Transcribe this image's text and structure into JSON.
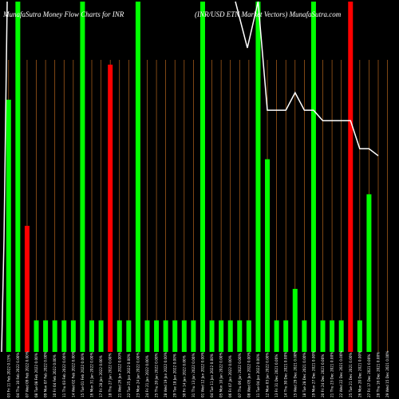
{
  "chart_data": {
    "type": "bar",
    "title_left": "MunafaSutra  Money Flow  Charts for INR",
    "title_right": "(INR/USD ETN  Market Vectors) MunafaSutra.com",
    "colors": {
      "background": "#000000",
      "up": "#00ff00",
      "down": "#ff0000",
      "grid": "#b5651d",
      "line": "#ffffff"
    },
    "ylim": [
      0,
      100
    ],
    "tick_labels": [
      "03 Fri 11 Feb 2022 0.15%",
      "04 Thu 10 Feb 2022 0.00%",
      "07 Wed 09 Feb 2022 0.00%",
      "08 Tue 08 Feb 2022 0.00%",
      "09 Mon 07 Feb 2022 0.00%",
      "10 Fri 04 Feb 2022 0.00%",
      "11 Thu 03 Feb 2022 0.00%",
      "14 Wed 02 Feb 2022 0.00%",
      "15 Tue 01 Feb 2022 0.00%",
      "16 Mon 31 Jan 2022 0.00%",
      "17 Fri 28 Jan 2022 0.00%",
      "18 Thu 27 Jan 2022 0.00%",
      "21 Wed 26 Jan 2022 0.00%",
      "22 Tue 25 Jan 2022 0.00%",
      "23 Mon 24 Jan 2022 0.00%",
      "24 Fri 21 Jan 2022 0.00%",
      "25 Thu 20 Jan 2022 0.00%",
      "28 Wed 19 Jan 2022 0.00%",
      "29 Tue 18 Jan 2022 0.00%",
      "30 Fri 14 Jan 2022 0.00%",
      "31 Thu 13 Jan 2022 0.00%",
      "01 Wed 12 Jan 2022 0.00%",
      "04 Tue 11 Jan 2022 0.00%",
      "05 Mon 10 Jan 2022 0.00%",
      "06 Fri 07 Jan 2022 0.00%",
      "07 Thu 06 Jan 2022 0.00%",
      "08 Wed 05 Jan 2022 0.00%",
      "11 Tue 04 Jan 2022 0.00%",
      "12 Mon 03 Jan 2022 0.00%",
      "13 Fri 31 Dec 2021 0.00%",
      "14 Thu 30 Dec 2021 0.00%",
      "15 Wed 29 Dec 2021 0.00%",
      "18 Tue 28 Dec 2021 0.00%",
      "19 Mon 27 Dec 2021 0.00%",
      "20 Fri 24 Dec 2021 0.00%",
      "21 Thu 23 Dec 2021 0.00%",
      "22 Wed 22 Dec 2021 0.00%",
      "25 Tue 21 Dec 2021 0.00%",
      "26 Mon 20 Dec 2021 0.00%",
      "27 Fri 17 Dec 2021 0.00%",
      "28 Thu 16 Dec 2021 0.00%",
      "29 Wed 15 Dec 2021 0.00%"
    ],
    "series": [
      {
        "type": "bar",
        "values": [
          72,
          100,
          36,
          9,
          9,
          9,
          9,
          9,
          100,
          9,
          9,
          82,
          9,
          9,
          100,
          9,
          9,
          9,
          9,
          9,
          9,
          100,
          9,
          9,
          9,
          9,
          9,
          100,
          55,
          9,
          9,
          18,
          9,
          100,
          9,
          9,
          9,
          100,
          9,
          45,
          0,
          0
        ],
        "directions": [
          "up",
          "up",
          "down",
          "up",
          "up",
          "up",
          "up",
          "up",
          "up",
          "up",
          "up",
          "down",
          "up",
          "up",
          "up",
          "up",
          "up",
          "up",
          "up",
          "up",
          "up",
          "up",
          "up",
          "up",
          "up",
          "up",
          "up",
          "up",
          "up",
          "up",
          "up",
          "up",
          "up",
          "up",
          "up",
          "up",
          "up",
          "down",
          "up",
          "up",
          "up",
          "up"
        ]
      },
      {
        "type": "line",
        "values": [
          null,
          null,
          null,
          null,
          null,
          null,
          null,
          null,
          null,
          null,
          null,
          null,
          null,
          null,
          null,
          null,
          null,
          null,
          null,
          null,
          null,
          null,
          null,
          null,
          null,
          null,
          null,
          100,
          69,
          69,
          69,
          74,
          69,
          69,
          66,
          66,
          66,
          66,
          58,
          58,
          56,
          null
        ]
      }
    ]
  }
}
